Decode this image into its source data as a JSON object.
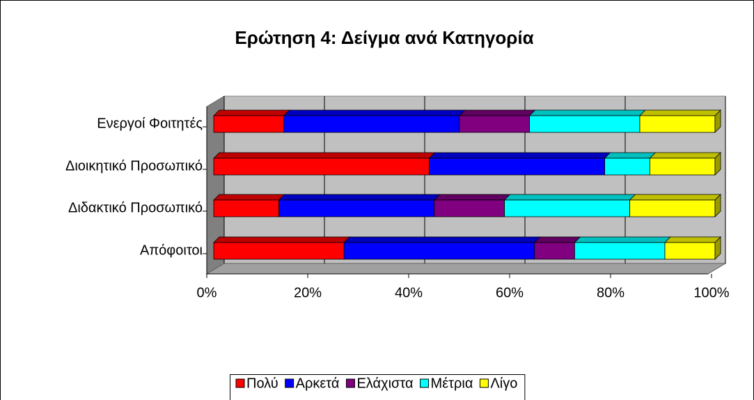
{
  "chart_data": {
    "type": "bar",
    "orientation": "horizontal",
    "stacked": true,
    "title": "Ερώτηση 4: Δείγμα ανά Κατηγορία",
    "categories": [
      "Ενεργοί Φοιτητές",
      "Διοικητικό Προσωπικό",
      "Διδακτικό Προσωπικό",
      "Απόφοιτοι"
    ],
    "series": [
      {
        "name": "Πολύ",
        "color": "#ff0000",
        "values": [
          14,
          43,
          13,
          26
        ]
      },
      {
        "name": "Αρκετά",
        "color": "#0000ff",
        "values": [
          35,
          35,
          31,
          38
        ]
      },
      {
        "name": "Ελάχιστα",
        "color": "#800080",
        "values": [
          14,
          0,
          14,
          8
        ]
      },
      {
        "name": "Μέτρια",
        "color": "#00ffff",
        "values": [
          22,
          9,
          25,
          18
        ]
      },
      {
        "name": "Λίγο",
        "color": "#ffff00",
        "values": [
          15,
          13,
          17,
          10
        ]
      }
    ],
    "xlim": [
      0,
      100
    ],
    "xticks": [
      {
        "value": 0,
        "label": "0%"
      },
      {
        "value": 20,
        "label": "20%"
      },
      {
        "value": 40,
        "label": "40%"
      },
      {
        "value": 60,
        "label": "60%"
      },
      {
        "value": 80,
        "label": "80%"
      },
      {
        "value": 100,
        "label": "100%"
      }
    ],
    "grid": true,
    "legend": "bottom"
  }
}
